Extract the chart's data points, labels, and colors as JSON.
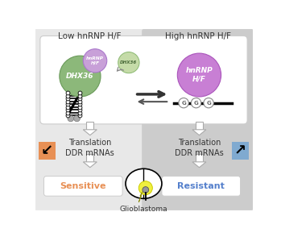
{
  "fig_width": 3.49,
  "fig_height": 2.94,
  "dpi": 100,
  "bg_left_color": "#e8e8e8",
  "bg_right_color": "#cccccc",
  "title_left": "Low hnRNP H/F",
  "title_right": "High hnRNP H/F",
  "dhx36_large_color": "#8cb87a",
  "dhx36_large_edge": "#6a9a5a",
  "dhx36_small_color": "#c5dba8",
  "dhx36_small_edge": "#8ab870",
  "hnrnp_large_color": "#c87fd4",
  "hnrnp_large_edge": "#aa55bb",
  "hnrnp_small_color": "#c8a0d8",
  "hnrnp_small_edge": "#aa77cc",
  "orange_box_color": "#e89055",
  "blue_box_color": "#80aad0",
  "sensitive_color": "#e89055",
  "resistant_color": "#5580cc",
  "text_color": "#333333",
  "label_fontsize": 7.5,
  "outcome_fontsize": 8.0,
  "glioblastoma_label": "Glioblastoma"
}
